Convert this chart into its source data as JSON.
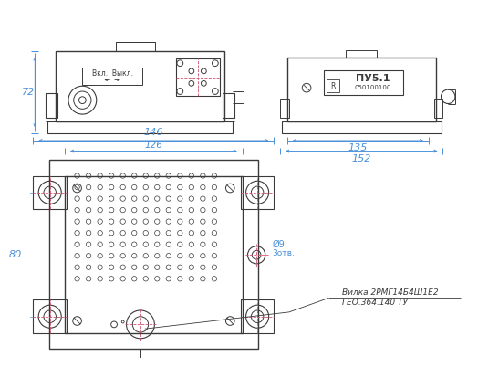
{
  "bg_color": "#ffffff",
  "line_color": "#3a3a3a",
  "dim_color": "#4a90d9",
  "pink_color": "#d05070",
  "label_vkl": "Вкл.  Выкл.",
  "label_pu": "ПУ5.1",
  "label_num": "050100100",
  "dim_72": "72",
  "dim_135": "135",
  "dim_152": "152",
  "dim_146": "146",
  "dim_126": "126",
  "dim_80": "80",
  "dim_d9": "Ø9",
  "dim_3otv": "3отв.",
  "label_vilka1": "Вилка 2РМГ14Б4Ш1Е2",
  "label_vilka2": "ГЕО.364.140 ТУ"
}
